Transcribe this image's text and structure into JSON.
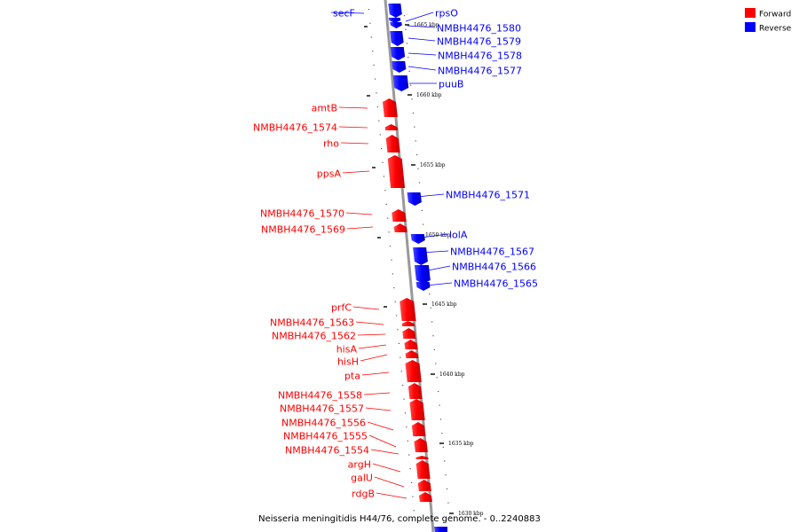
{
  "legend": {
    "forward_label": "Forward",
    "reverse_label": "Reverse",
    "forward_color": "#ff0000",
    "reverse_color": "#0000ff"
  },
  "caption": "Neisseria meningitidis H44/76, complete genome. - 0..2240883",
  "kbp_labels": [
    "1665 kbp",
    "1660 kbp",
    "1655 kbp",
    "1650 kbp",
    "1645 kbp",
    "1640 kbp",
    "1635 kbp",
    "1630 kbp"
  ],
  "genes": [
    {
      "name": "secF",
      "strand": "reverse"
    },
    {
      "name": "rpsO",
      "strand": "reverse"
    },
    {
      "name": "NMBH4476_1580",
      "strand": "reverse"
    },
    {
      "name": "NMBH4476_1579",
      "strand": "reverse"
    },
    {
      "name": "NMBH4476_1578",
      "strand": "reverse"
    },
    {
      "name": "NMBH4476_1577",
      "strand": "reverse"
    },
    {
      "name": "puuB",
      "strand": "reverse"
    },
    {
      "name": "amtB",
      "strand": "forward"
    },
    {
      "name": "NMBH4476_1574",
      "strand": "forward"
    },
    {
      "name": "rho",
      "strand": "forward"
    },
    {
      "name": "ppsA",
      "strand": "forward"
    },
    {
      "name": "NMBH4476_1571",
      "strand": "reverse"
    },
    {
      "name": "NMBH4476_1570",
      "strand": "forward"
    },
    {
      "name": "NMBH4476_1569",
      "strand": "forward"
    },
    {
      "name": "lolA",
      "strand": "reverse"
    },
    {
      "name": "NMBH4476_1567",
      "strand": "reverse"
    },
    {
      "name": "NMBH4476_1566",
      "strand": "reverse"
    },
    {
      "name": "NMBH4476_1565",
      "strand": "reverse"
    },
    {
      "name": "prfC",
      "strand": "forward"
    },
    {
      "name": "NMBH4476_1563",
      "strand": "forward"
    },
    {
      "name": "NMBH4476_1562",
      "strand": "forward"
    },
    {
      "name": "hisA",
      "strand": "forward"
    },
    {
      "name": "hisH",
      "strand": "forward"
    },
    {
      "name": "pta",
      "strand": "forward"
    },
    {
      "name": "NMBH4476_1558",
      "strand": "forward"
    },
    {
      "name": "NMBH4476_1557",
      "strand": "forward"
    },
    {
      "name": "NMBH4476_1556",
      "strand": "forward"
    },
    {
      "name": "NMBH4476_1555",
      "strand": "forward"
    },
    {
      "name": "NMBH4476_1554",
      "strand": "forward"
    },
    {
      "name": "argH",
      "strand": "forward"
    },
    {
      "name": "galU",
      "strand": "forward"
    },
    {
      "name": "rdgB",
      "strand": "forward"
    }
  ]
}
